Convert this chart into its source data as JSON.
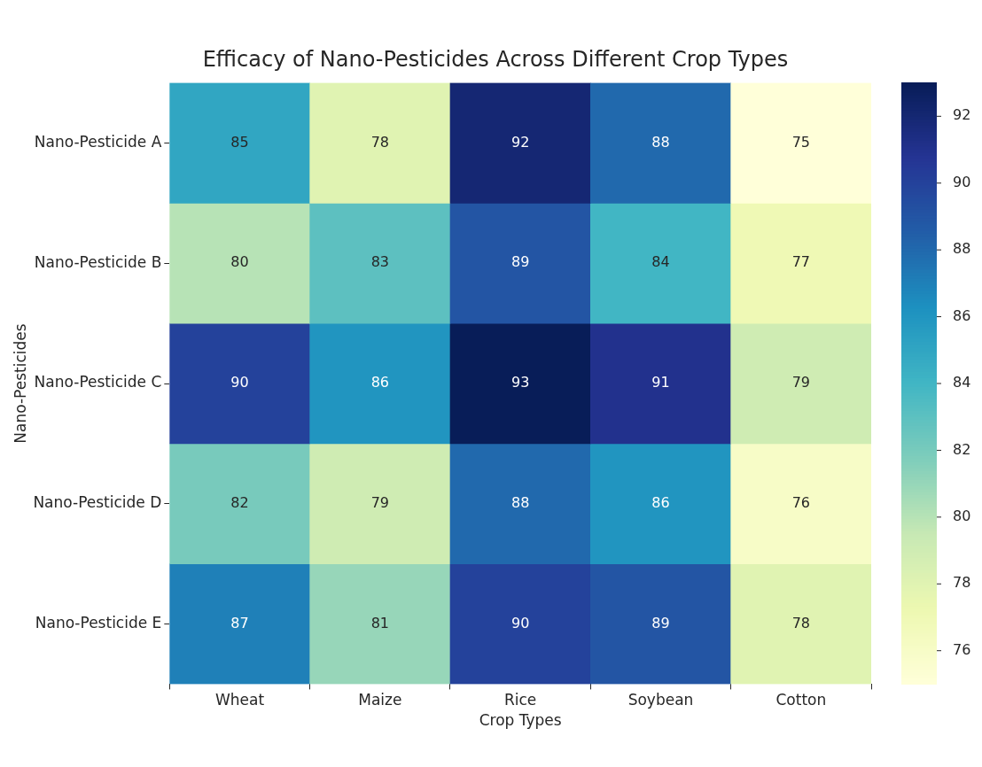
{
  "chart_data": {
    "type": "heatmap",
    "title": "Efficacy of Nano-Pesticides Across Different Crop Types",
    "xlabel": "Crop Types",
    "ylabel": "Nano-Pesticides",
    "categories": [
      "Wheat",
      "Maize",
      "Rice",
      "Soybean",
      "Cotton"
    ],
    "y_categories": [
      "Nano-Pesticide A",
      "Nano-Pesticide B",
      "Nano-Pesticide C",
      "Nano-Pesticide D",
      "Nano-Pesticide E"
    ],
    "cells": [
      [
        85,
        78,
        92,
        88,
        75
      ],
      [
        80,
        83,
        89,
        84,
        77
      ],
      [
        90,
        86,
        93,
        91,
        79
      ],
      [
        82,
        79,
        88,
        86,
        76
      ],
      [
        87,
        81,
        90,
        89,
        78
      ]
    ],
    "clim": [
      75,
      93
    ],
    "cticks": [
      76,
      78,
      80,
      82,
      84,
      86,
      88,
      90,
      92
    ],
    "data_labels": true
  }
}
